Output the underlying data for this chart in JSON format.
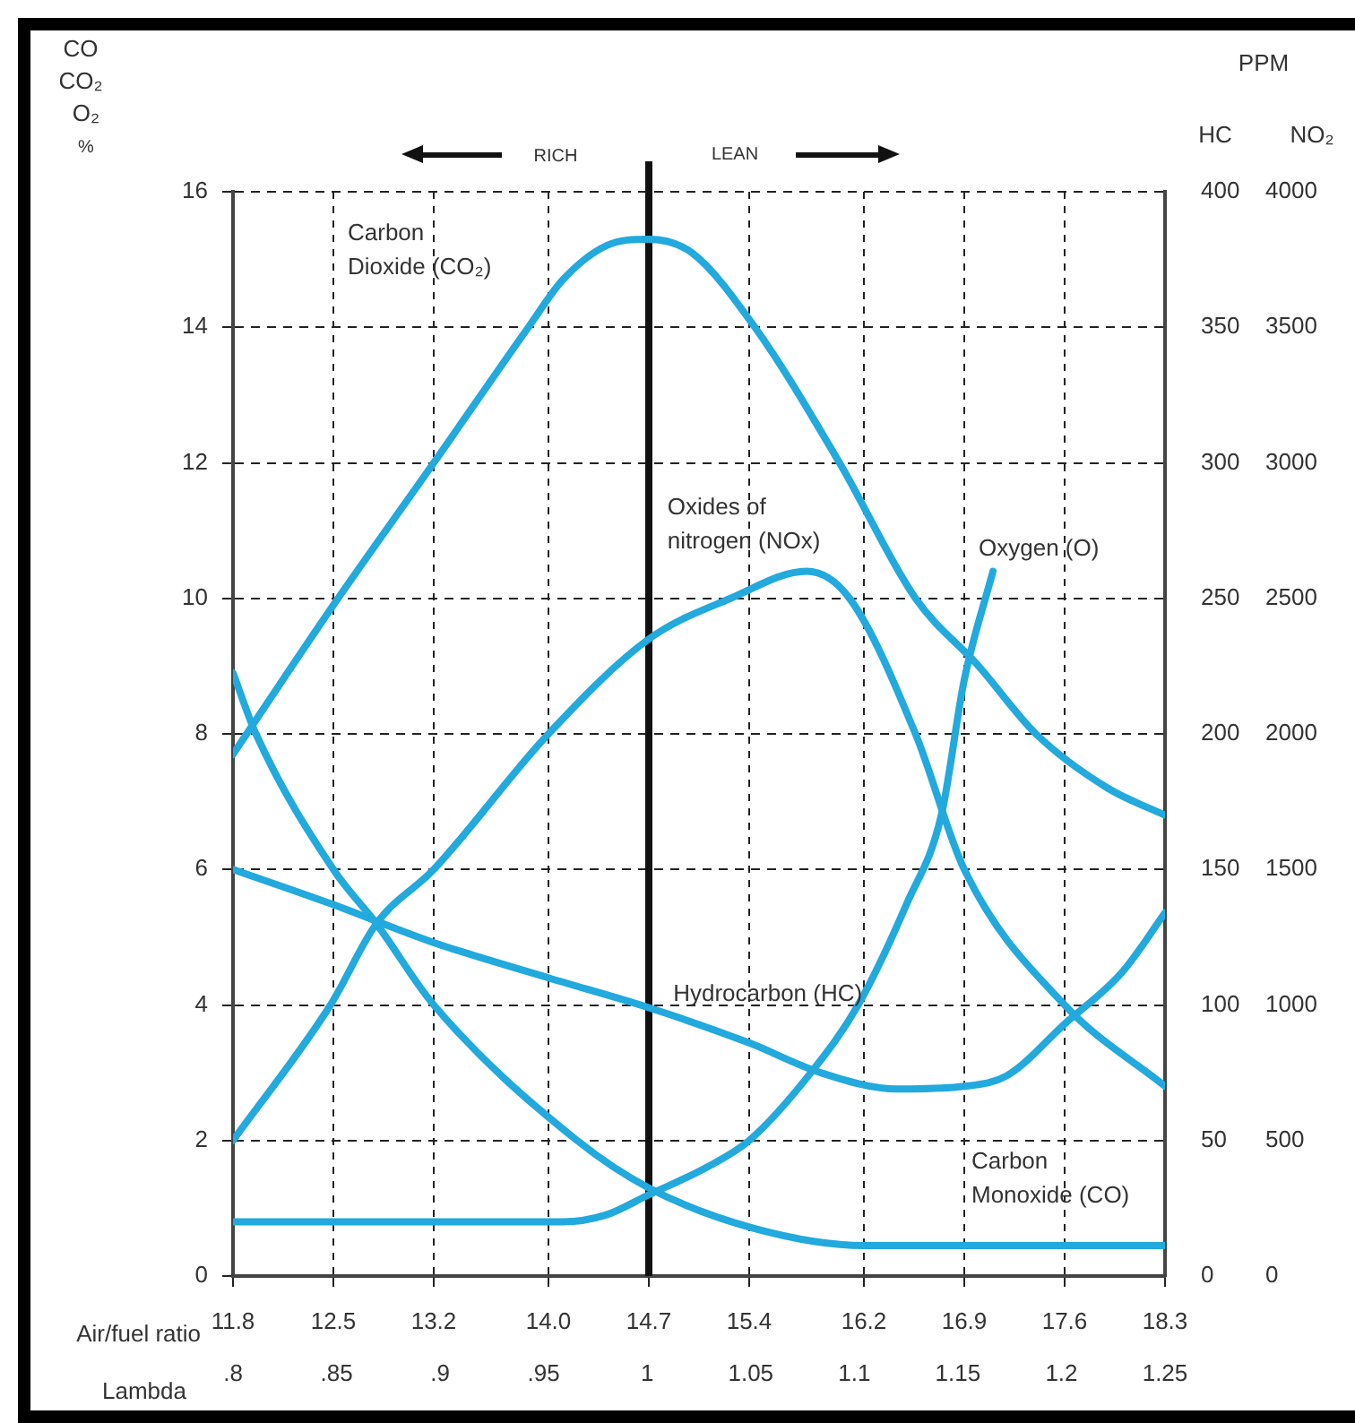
{
  "chart_data": {
    "type": "line",
    "xlabel": "Air/fuel ratio",
    "x2label": "Lambda",
    "ylabel": "CO CO₂ O₂ %",
    "y2label": "HC",
    "y3label": "NO₂",
    "annotations": [
      "RICH",
      "LEAN",
      "PPM"
    ],
    "xlim": [
      11.8,
      18.3
    ],
    "xticks": [
      11.8,
      12.5,
      13.2,
      {
        "value": 14,
        "label": "14.0"
      },
      14.7,
      15.4,
      16.2,
      16.9,
      17.6,
      18.3
    ],
    "x2lim": [
      0.8,
      1.25
    ],
    "x2ticks": [
      {
        "value": 0.8,
        "label": ".8"
      },
      {
        "value": 0.85,
        "label": ".85"
      },
      {
        "value": 0.9,
        "label": ".9"
      },
      {
        "value": 0.95,
        "label": ".95"
      },
      1,
      1.05,
      1.1,
      1.15,
      1.2,
      1.25
    ],
    "ylim": [
      0,
      16
    ],
    "yticks": [
      0,
      2,
      4,
      6,
      8,
      10,
      12,
      14,
      16
    ],
    "y2lim": [
      0,
      400
    ],
    "y2ticks": [
      0,
      50,
      100,
      150,
      200,
      250,
      300,
      350,
      400
    ],
    "y3lim": [
      0,
      4000
    ],
    "y3ticks": [
      0,
      500,
      1000,
      1500,
      2000,
      2500,
      3000,
      3500,
      4000
    ],
    "grid": true,
    "legend": false,
    "marker": "none",
    "line_style": "solid",
    "ref_lines": [
      {
        "axis": "x",
        "value": 14.7,
        "color": "#111111"
      }
    ],
    "series": [
      {
        "name": "Carbon Dioxide (CO₂)",
        "color": "#22a9dd",
        "x": [
          11.8,
          12.5,
          13.2,
          13.86,
          14.1,
          14.4,
          14.7,
          15.0,
          15.44,
          16.03,
          16.56,
          17.0,
          17.4,
          17.9,
          18.3
        ],
        "values": [
          7.7,
          9.9,
          12,
          14,
          14.7,
          15.2,
          15.3,
          15.1,
          14,
          12,
          10,
          9,
          8,
          7.2,
          6.8
        ]
      },
      {
        "name": "Oxides of nitrogen (NOx)",
        "color": "#22a9dd",
        "axis": "y3",
        "x": [
          11.8,
          12.48,
          12.8,
          13.2,
          14.0,
          14.7,
          15.27,
          15.8,
          16.1,
          16.56,
          16.9,
          17.6,
          18.3
        ],
        "values": [
          500,
          1000,
          1300,
          1500,
          2000,
          2350,
          2500,
          2600,
          2500,
          2000,
          1500,
          1000,
          700
        ]
      },
      {
        "name": "Oxygen (O)",
        "color": "#22a9dd",
        "x": [
          11.8,
          13.0,
          14.1,
          14.4,
          14.7,
          15.1,
          15.4,
          15.83,
          16.16,
          16.5,
          16.74,
          16.9,
          17.1
        ],
        "values": [
          0.8,
          0.8,
          0.8,
          0.9,
          1.2,
          1.6,
          2.0,
          3.0,
          4.0,
          5.5,
          6.8,
          8.8,
          10.4
        ]
      },
      {
        "name": "Hydrocarbon (HC)",
        "color": "#22a9dd",
        "axis": "y2",
        "x": [
          11.8,
          12.5,
          13.2,
          14.0,
          14.7,
          15.4,
          15.9,
          16.43,
          16.9,
          17.2,
          17.6,
          18.0,
          18.3
        ],
        "values": [
          150,
          137,
          123,
          110,
          99,
          86,
          75,
          69,
          70,
          74,
          93,
          112,
          134
        ]
      },
      {
        "name": "Carbon Monoxide (CO)",
        "color": "#22a9dd",
        "x": [
          11.8,
          11.96,
          12.5,
          12.8,
          13.2,
          14.2,
          14.7,
          15.44,
          16.2,
          17.0,
          18.3
        ],
        "values": [
          8.9,
          8,
          6,
          5.2,
          4,
          2,
          1.3,
          0.7,
          0.45,
          0.45,
          0.45
        ]
      }
    ]
  }
}
